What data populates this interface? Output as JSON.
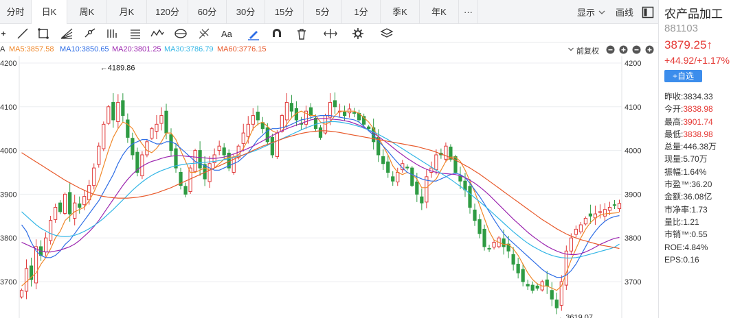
{
  "tabs": [
    {
      "label": "分时"
    },
    {
      "label": "日K",
      "active": true
    },
    {
      "label": "周K"
    },
    {
      "label": "月K"
    },
    {
      "label": "120分"
    },
    {
      "label": "60分"
    },
    {
      "label": "30分"
    },
    {
      "label": "15分"
    },
    {
      "label": "5分"
    },
    {
      "label": "1分"
    },
    {
      "label": "季K"
    },
    {
      "label": "年K"
    },
    {
      "label": "···"
    }
  ],
  "tabbar": {
    "display_label": "显示",
    "draw_label": "画线"
  },
  "toolbar_icons": [
    "crosshair-icon",
    "line-icon",
    "rect-select-icon",
    "fan-icon",
    "pen-link-icon",
    "bars-icon",
    "channel-icon",
    "wave-icon",
    "cycle-icon",
    "fib-icon",
    "text-icon",
    "brush-icon",
    "magnet-icon",
    "trash-icon",
    "resize-icon",
    "settings-icon",
    "layers-icon"
  ],
  "ma_legend": [
    {
      "text": "MA5:3857.58",
      "color": "#f0882a"
    },
    {
      "text": "MA10:3850.65",
      "color": "#2f6ee6"
    },
    {
      "text": "MA20:3801.25",
      "color": "#9c27b0"
    },
    {
      "text": "MA30:3786.79",
      "color": "#33b6e6"
    },
    {
      "text": "MA60:3776.15",
      "color": "#e8592a"
    }
  ],
  "legend_prefix": "A",
  "restore_label": "前复权",
  "panel": {
    "name": "农产品加工",
    "code": "881103",
    "price": "3879.25↑",
    "change": "+44.92/+1.17%",
    "add_label": "+自选",
    "stats": [
      {
        "k": "昨收:",
        "v": "3834.33"
      },
      {
        "k": "今开:",
        "v": "3838.98",
        "up": true
      },
      {
        "k": "最高:",
        "v": "3901.74",
        "up": true
      },
      {
        "k": "最低:",
        "v": "3838.98",
        "up": true
      },
      {
        "k": "总量:",
        "v": "446.38万"
      },
      {
        "k": "现量:",
        "v": "5.70万"
      },
      {
        "k": "振幅:",
        "v": "1.64%"
      },
      {
        "k": "市盈™:",
        "v": "36.20"
      },
      {
        "k": "金额:",
        "v": "36.08亿"
      },
      {
        "k": "市净率:",
        "v": "1.73"
      },
      {
        "k": "量比:",
        "v": "1.21"
      },
      {
        "k": "市销™:",
        "v": "0.55"
      },
      {
        "k": "ROE:",
        "v": "4.84%"
      },
      {
        "k": "EPS:",
        "v": "0.16"
      }
    ]
  },
  "chart_data": {
    "type": "candlestick",
    "y_ticks": [
      "4200",
      "4100",
      "4000",
      "3900",
      "3800",
      "3700"
    ],
    "ylim": [
      3620,
      4200
    ],
    "colors": {
      "up": "#e03a3a",
      "down": "#2e9b43"
    },
    "annotations": [
      {
        "text": "←4189.86",
        "index": 16,
        "value": 4189.86
      },
      {
        "text": "←3619.07",
        "index": 111,
        "value": 3619.07
      }
    ],
    "close": [
      3680,
      3730,
      3705,
      3780,
      3760,
      3800,
      3840,
      3870,
      3860,
      3900,
      3855,
      3880,
      3870,
      3895,
      3920,
      3960,
      4010,
      4060,
      4100,
      4070,
      4110,
      4080,
      4030,
      3990,
      3950,
      3990,
      4020,
      4050,
      4060,
      4080,
      4040,
      4000,
      3960,
      3920,
      3900,
      3960,
      4000,
      3960,
      3935,
      3970,
      3990,
      4010,
      3990,
      3960,
      3985,
      4010,
      4040,
      4060,
      4080,
      4070,
      4050,
      4020,
      3990,
      4040,
      4080,
      4110,
      4090,
      4070,
      4060,
      4090,
      4080,
      4050,
      4030,
      4080,
      4110,
      4100,
      4090,
      4080,
      4095,
      4085,
      4070,
      4060,
      4050,
      4020,
      3990,
      3970,
      3950,
      3930,
      3950,
      3970,
      3960,
      3920,
      3900,
      3880,
      3940,
      3960,
      3990,
      3990,
      4010,
      3980,
      3950,
      3930,
      3910,
      3870,
      3840,
      3810,
      3780,
      3775,
      3790,
      3800,
      3780,
      3770,
      3740,
      3720,
      3700,
      3690,
      3680,
      3685,
      3700,
      3690,
      3660,
      3640,
      3700,
      3770,
      3800,
      3820,
      3830,
      3845,
      3850,
      3855,
      3860,
      3865,
      3870,
      3875,
      3879
    ],
    "ma": {
      "MA5": [
        3690,
        3700,
        3710,
        3720,
        3740,
        3755,
        3775,
        3800,
        3815,
        3840,
        3850,
        3860,
        3865,
        3870,
        3885,
        3905,
        3930,
        3965,
        4000,
        4030,
        4050,
        4065,
        4060,
        4050,
        4030,
        4015,
        4000,
        3995,
        4005,
        4020,
        4040,
        4040,
        4025,
        4000,
        3975,
        3950,
        3950,
        3955,
        3960,
        3955,
        3960,
        3970,
        3980,
        3985,
        3985,
        3990,
        4005,
        4025,
        4050,
        4060,
        4065,
        4055,
        4045,
        4040,
        4045,
        4060,
        4075,
        4085,
        4090,
        4085,
        4080,
        4080,
        4065,
        4060,
        4065,
        4080,
        4090,
        4090,
        4090,
        4090,
        4085,
        4075,
        4065,
        4050,
        4030,
        4010,
        3990,
        3965,
        3950,
        3945,
        3950,
        3945,
        3935,
        3915,
        3915,
        3925,
        3935,
        3955,
        3975,
        3985,
        3985,
        3975,
        3955,
        3930,
        3905,
        3875,
        3845,
        3815,
        3795,
        3790,
        3785,
        3785,
        3775,
        3760,
        3740,
        3720,
        3705,
        3695,
        3690,
        3690,
        3685,
        3680,
        3690,
        3720,
        3750,
        3775,
        3800,
        3820,
        3835,
        3845,
        3852,
        3855,
        3856,
        3857,
        3858
      ],
      "MA10": [
        3830,
        3815,
        3790,
        3770,
        3760,
        3755,
        3755,
        3760,
        3770,
        3785,
        3795,
        3810,
        3825,
        3840,
        3855,
        3870,
        3885,
        3905,
        3925,
        3945,
        3970,
        3990,
        4005,
        4015,
        4020,
        4025,
        4025,
        4020,
        4015,
        4015,
        4020,
        4020,
        4015,
        4005,
        3995,
        3985,
        3975,
        3970,
        3965,
        3960,
        3955,
        3955,
        3960,
        3965,
        3970,
        3975,
        3985,
        3995,
        4010,
        4025,
        4035,
        4045,
        4050,
        4050,
        4052,
        4055,
        4060,
        4065,
        4070,
        4072,
        4075,
        4078,
        4080,
        4080,
        4080,
        4078,
        4076,
        4074,
        4072,
        4070,
        4065,
        4055,
        4045,
        4035,
        4022,
        4010,
        3998,
        3985,
        3972,
        3960,
        3950,
        3945,
        3940,
        3935,
        3932,
        3930,
        3930,
        3935,
        3940,
        3945,
        3948,
        3945,
        3938,
        3925,
        3910,
        3895,
        3878,
        3860,
        3842,
        3825,
        3810,
        3798,
        3788,
        3778,
        3768,
        3758,
        3748,
        3738,
        3728,
        3720,
        3715,
        3710,
        3710,
        3715,
        3725,
        3740,
        3760,
        3780,
        3800,
        3815,
        3828,
        3838,
        3845,
        3849,
        3851
      ],
      "MA20": [
        3790,
        3785,
        3780,
        3775,
        3770,
        3768,
        3768,
        3770,
        3772,
        3776,
        3780,
        3786,
        3794,
        3804,
        3814,
        3826,
        3840,
        3856,
        3872,
        3888,
        3904,
        3920,
        3934,
        3946,
        3956,
        3964,
        3970,
        3975,
        3978,
        3982,
        3985,
        3987,
        3988,
        3988,
        3987,
        3986,
        3985,
        3984,
        3983,
        3982,
        3982,
        3983,
        3985,
        3988,
        3992,
        3996,
        4000,
        4005,
        4010,
        4016,
        4022,
        4028,
        4034,
        4040,
        4045,
        4050,
        4054,
        4058,
        4062,
        4066,
        4070,
        4072,
        4073,
        4073,
        4072,
        4071,
        4070,
        4068,
        4066,
        4062,
        4058,
        4053,
        4047,
        4040,
        4032,
        4024,
        4016,
        4007,
        3998,
        3990,
        3982,
        3975,
        3968,
        3962,
        3957,
        3953,
        3950,
        3948,
        3947,
        3946,
        3945,
        3942,
        3938,
        3932,
        3925,
        3917,
        3908,
        3898,
        3887,
        3876,
        3865,
        3854,
        3843,
        3833,
        3823,
        3813,
        3804,
        3796,
        3788,
        3781,
        3775,
        3770,
        3766,
        3763,
        3762,
        3762,
        3764,
        3768,
        3773,
        3779,
        3785,
        3790,
        3795,
        3799,
        3801
      ],
      "MA30": [
        3860,
        3850,
        3840,
        3830,
        3822,
        3816,
        3810,
        3806,
        3804,
        3803,
        3804,
        3806,
        3810,
        3815,
        3821,
        3828,
        3836,
        3845,
        3855,
        3865,
        3876,
        3887,
        3898,
        3909,
        3919,
        3928,
        3936,
        3943,
        3949,
        3954,
        3958,
        3962,
        3965,
        3967,
        3969,
        3970,
        3971,
        3972,
        3973,
        3974,
        3975,
        3977,
        3979,
        3981,
        3984,
        3987,
        3990,
        3994,
        3998,
        4002,
        4007,
        4012,
        4017,
        4022,
        4027,
        4032,
        4037,
        4042,
        4047,
        4052,
        4056,
        4060,
        4063,
        4065,
        4066,
        4066,
        4065,
        4063,
        4061,
        4058,
        4055,
        4051,
        4047,
        4042,
        4037,
        4031,
        4025,
        4018,
        4011,
        4004,
        3997,
        3990,
        3983,
        3976,
        3969,
        3962,
        3955,
        3948,
        3941,
        3934,
        3926,
        3918,
        3910,
        3901,
        3892,
        3883,
        3874,
        3864,
        3854,
        3844,
        3834,
        3824,
        3814,
        3805,
        3796,
        3788,
        3781,
        3775,
        3769,
        3764,
        3760,
        3757,
        3755,
        3754,
        3754,
        3755,
        3757,
        3760,
        3763,
        3766,
        3769,
        3772,
        3775,
        3779,
        3786
      ],
      "MA60": [
        3995,
        3988,
        3981,
        3974,
        3967,
        3960,
        3953,
        3946,
        3939,
        3932,
        3926,
        3920,
        3914,
        3909,
        3904,
        3900,
        3897,
        3895,
        3893,
        3892,
        3891,
        3891,
        3891,
        3892,
        3893,
        3895,
        3897,
        3900,
        3903,
        3907,
        3911,
        3915,
        3920,
        3925,
        3930,
        3935,
        3940,
        3945,
        3950,
        3955,
        3960,
        3965,
        3970,
        3975,
        3980,
        3985,
        3990,
        3995,
        4000,
        4005,
        4010,
        4014,
        4018,
        4022,
        4026,
        4030,
        4033,
        4036,
        4039,
        4041,
        4043,
        4044,
        4045,
        4045,
        4044,
        4043,
        4041,
        4039,
        4037,
        4035,
        4033,
        4031,
        4029,
        4027,
        4025,
        4023,
        4021,
        4019,
        4017,
        4015,
        4013,
        4011,
        4009,
        4006,
        4003,
        4000,
        3996,
        3992,
        3988,
        3983,
        3978,
        3972,
        3966,
        3960,
        3953,
        3946,
        3938,
        3930,
        3922,
        3914,
        3906,
        3898,
        3890,
        3882,
        3874,
        3866,
        3858,
        3850,
        3842,
        3835,
        3828,
        3821,
        3815,
        3809,
        3804,
        3800,
        3796,
        3793,
        3790,
        3787,
        3784,
        3782,
        3780,
        3778,
        3776
      ]
    }
  }
}
